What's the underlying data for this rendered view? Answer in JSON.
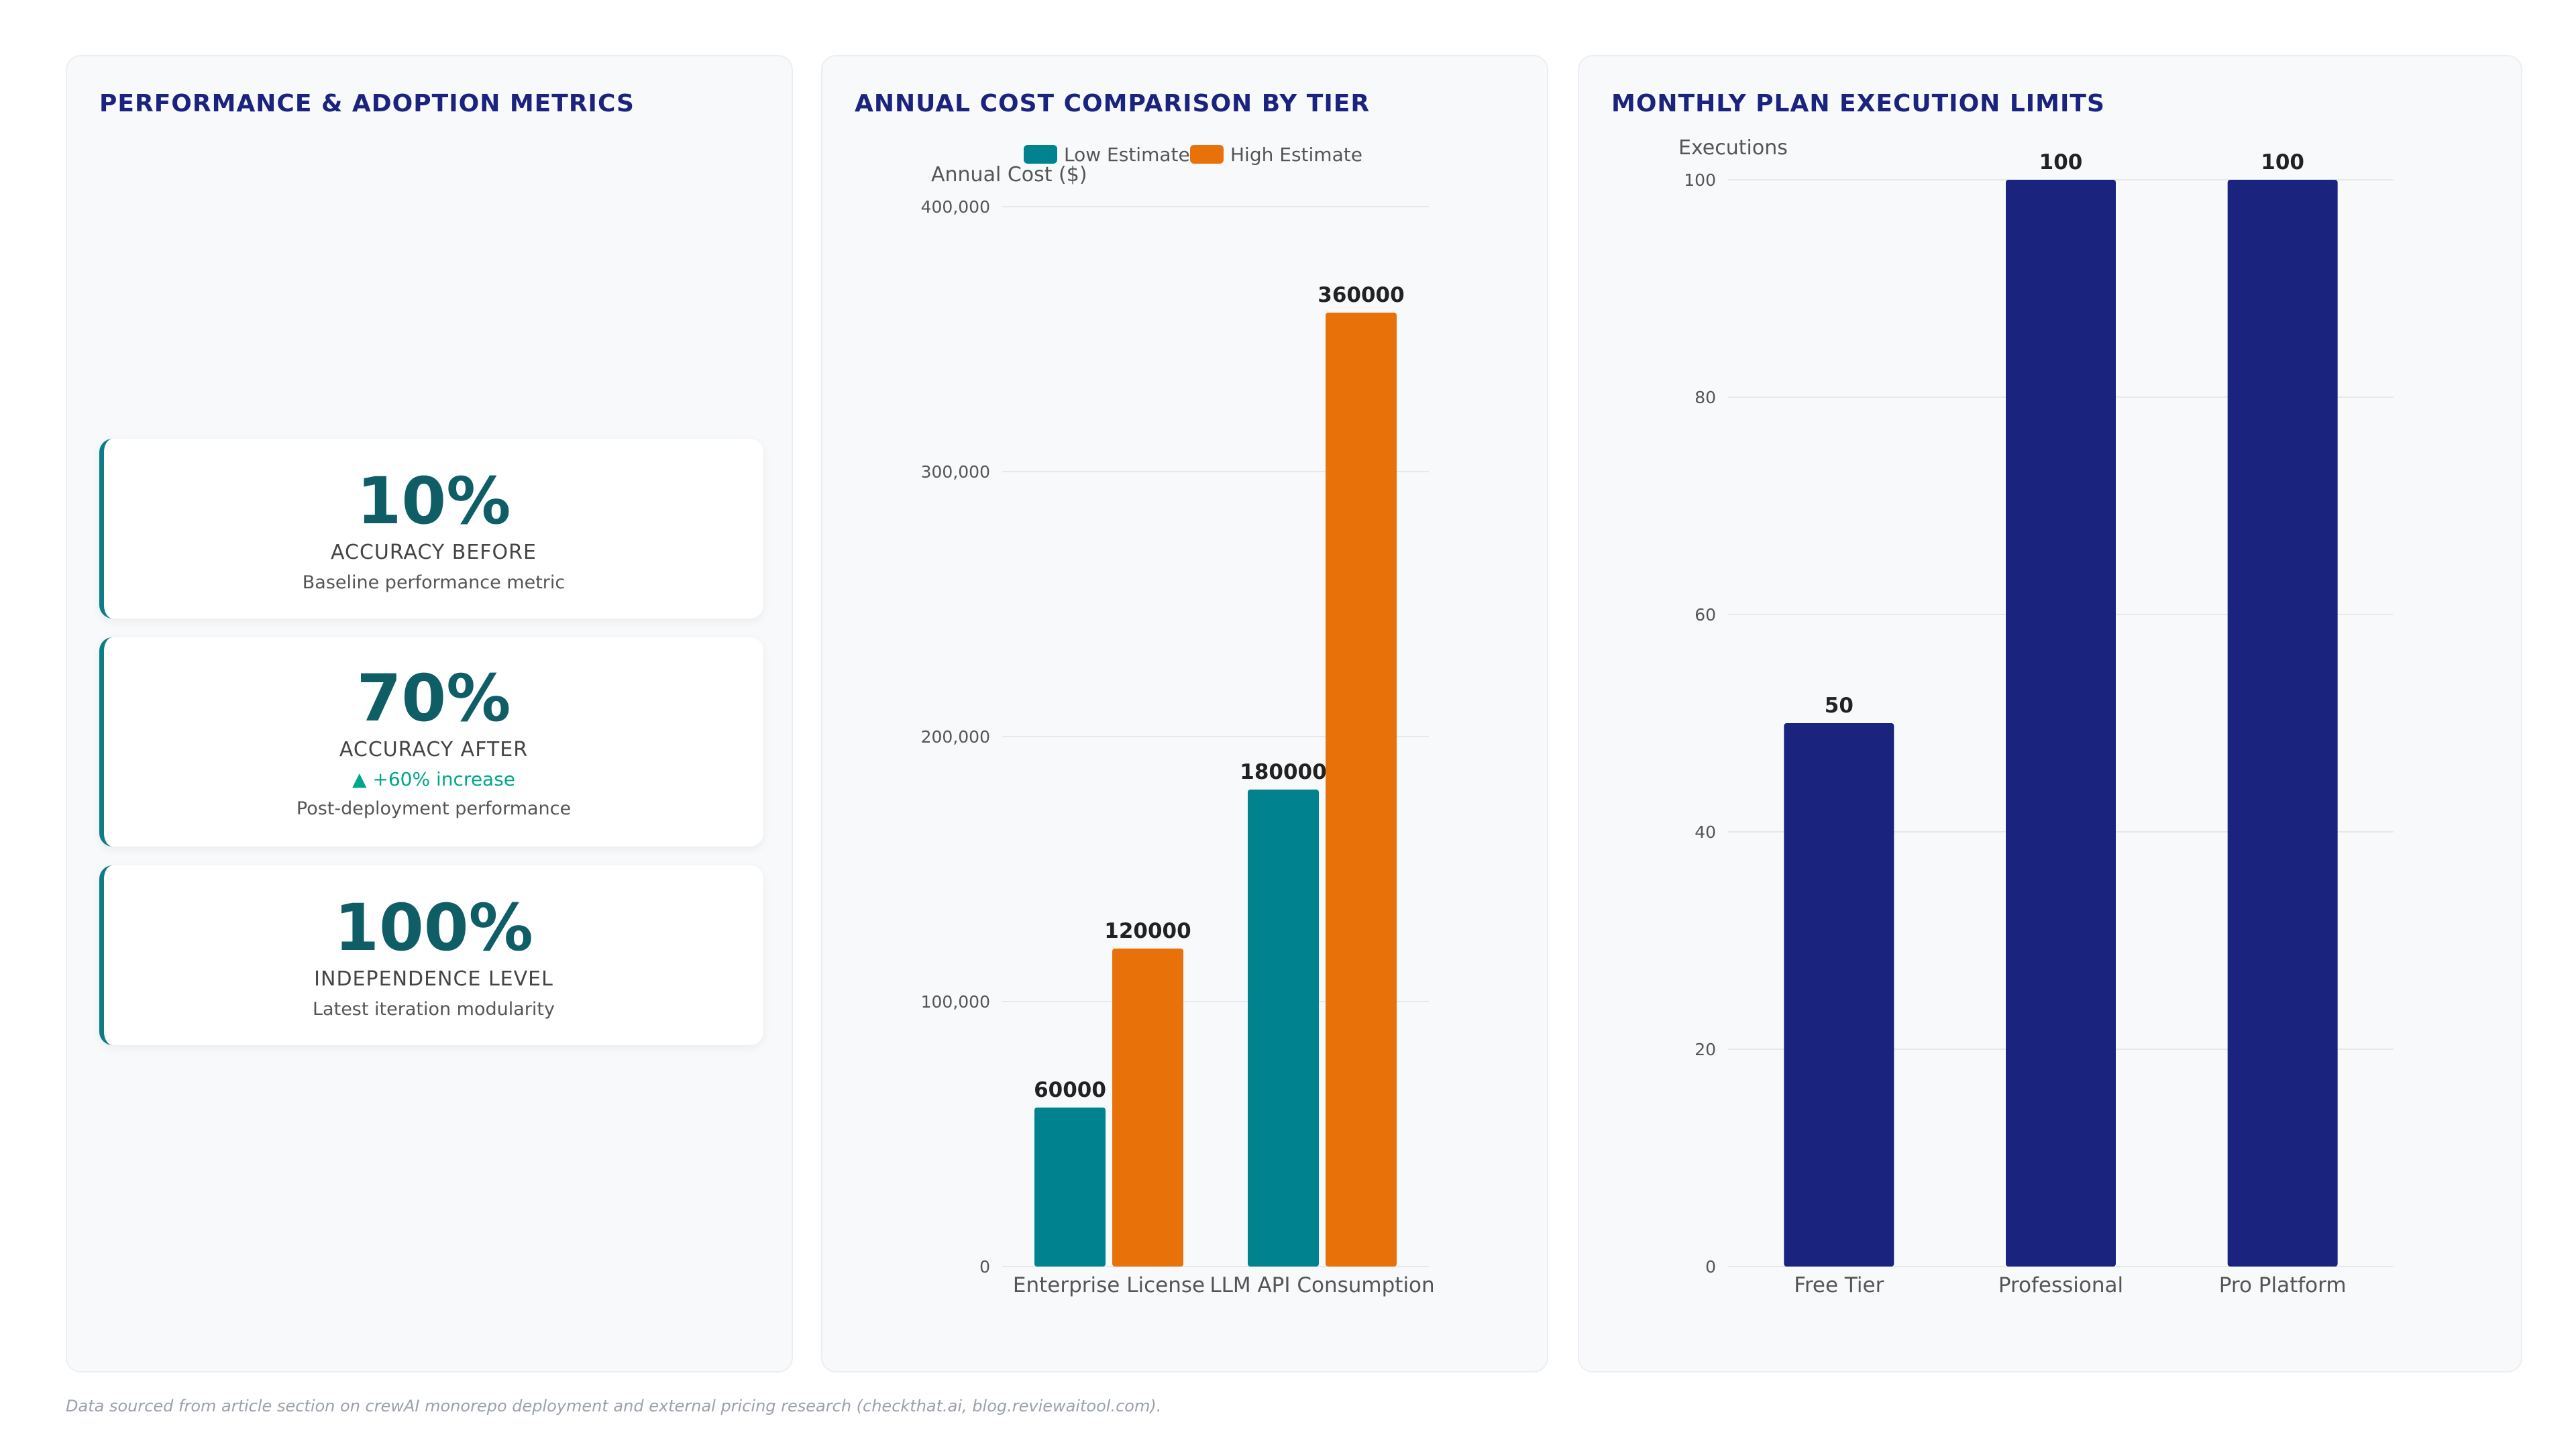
{
  "panels": {
    "metrics_title": "PERFORMANCE & ADOPTION METRICS",
    "cost_title": "ANNUAL COST COMPARISON BY TIER",
    "limits_title": "MONTHLY PLAN EXECUTION LIMITS"
  },
  "metrics": [
    {
      "value": "10%",
      "label": "ACCURACY BEFORE",
      "delta": "",
      "description": "Baseline performance metric"
    },
    {
      "value": "70%",
      "label": "ACCURACY AFTER",
      "delta": "▲ +60% increase",
      "description": "Post-deployment performance"
    },
    {
      "value": "100%",
      "label": "INDEPENDENCE LEVEL",
      "delta": "",
      "description": "Latest iteration modularity"
    }
  ],
  "colors": {
    "teal": "#00838f",
    "orange": "#e8710a",
    "navy": "#1a237e",
    "accent_green": "#00a88a"
  },
  "chart_data": [
    {
      "type": "bar",
      "title": "ANNUAL COST COMPARISON BY TIER",
      "categories": [
        "Enterprise License",
        "LLM API Consumption"
      ],
      "series": [
        {
          "name": "Low Estimate",
          "values": [
            60000,
            180000
          ],
          "color": "#00838f"
        },
        {
          "name": "High Estimate",
          "values": [
            120000,
            360000
          ],
          "color": "#e8710a"
        }
      ],
      "xlabel": "",
      "ylabel": "Annual Cost ($)",
      "ylim": [
        0,
        400000
      ],
      "yticks": [
        0,
        100000,
        200000,
        300000,
        400000
      ],
      "ytick_labels": [
        "0",
        "100,000",
        "200,000",
        "300,000",
        "400,000"
      ],
      "legend": "top-center",
      "grid": true
    },
    {
      "type": "bar",
      "title": "MONTHLY PLAN EXECUTION LIMITS",
      "categories": [
        "Free Tier",
        "Professional",
        "Pro Platform"
      ],
      "values": [
        50,
        100,
        100
      ],
      "color": "#1a237e",
      "xlabel": "",
      "ylabel": "Executions",
      "ylim": [
        0,
        100
      ],
      "yticks": [
        0,
        20,
        40,
        60,
        80,
        100
      ],
      "ytick_labels": [
        "0",
        "20",
        "40",
        "60",
        "80",
        "100"
      ],
      "legend": "none",
      "grid": true
    }
  ],
  "footnote": "Data sourced from article section on crewAI monorepo deployment and external pricing research (checkthat.ai, blog.reviewaitool.com)."
}
